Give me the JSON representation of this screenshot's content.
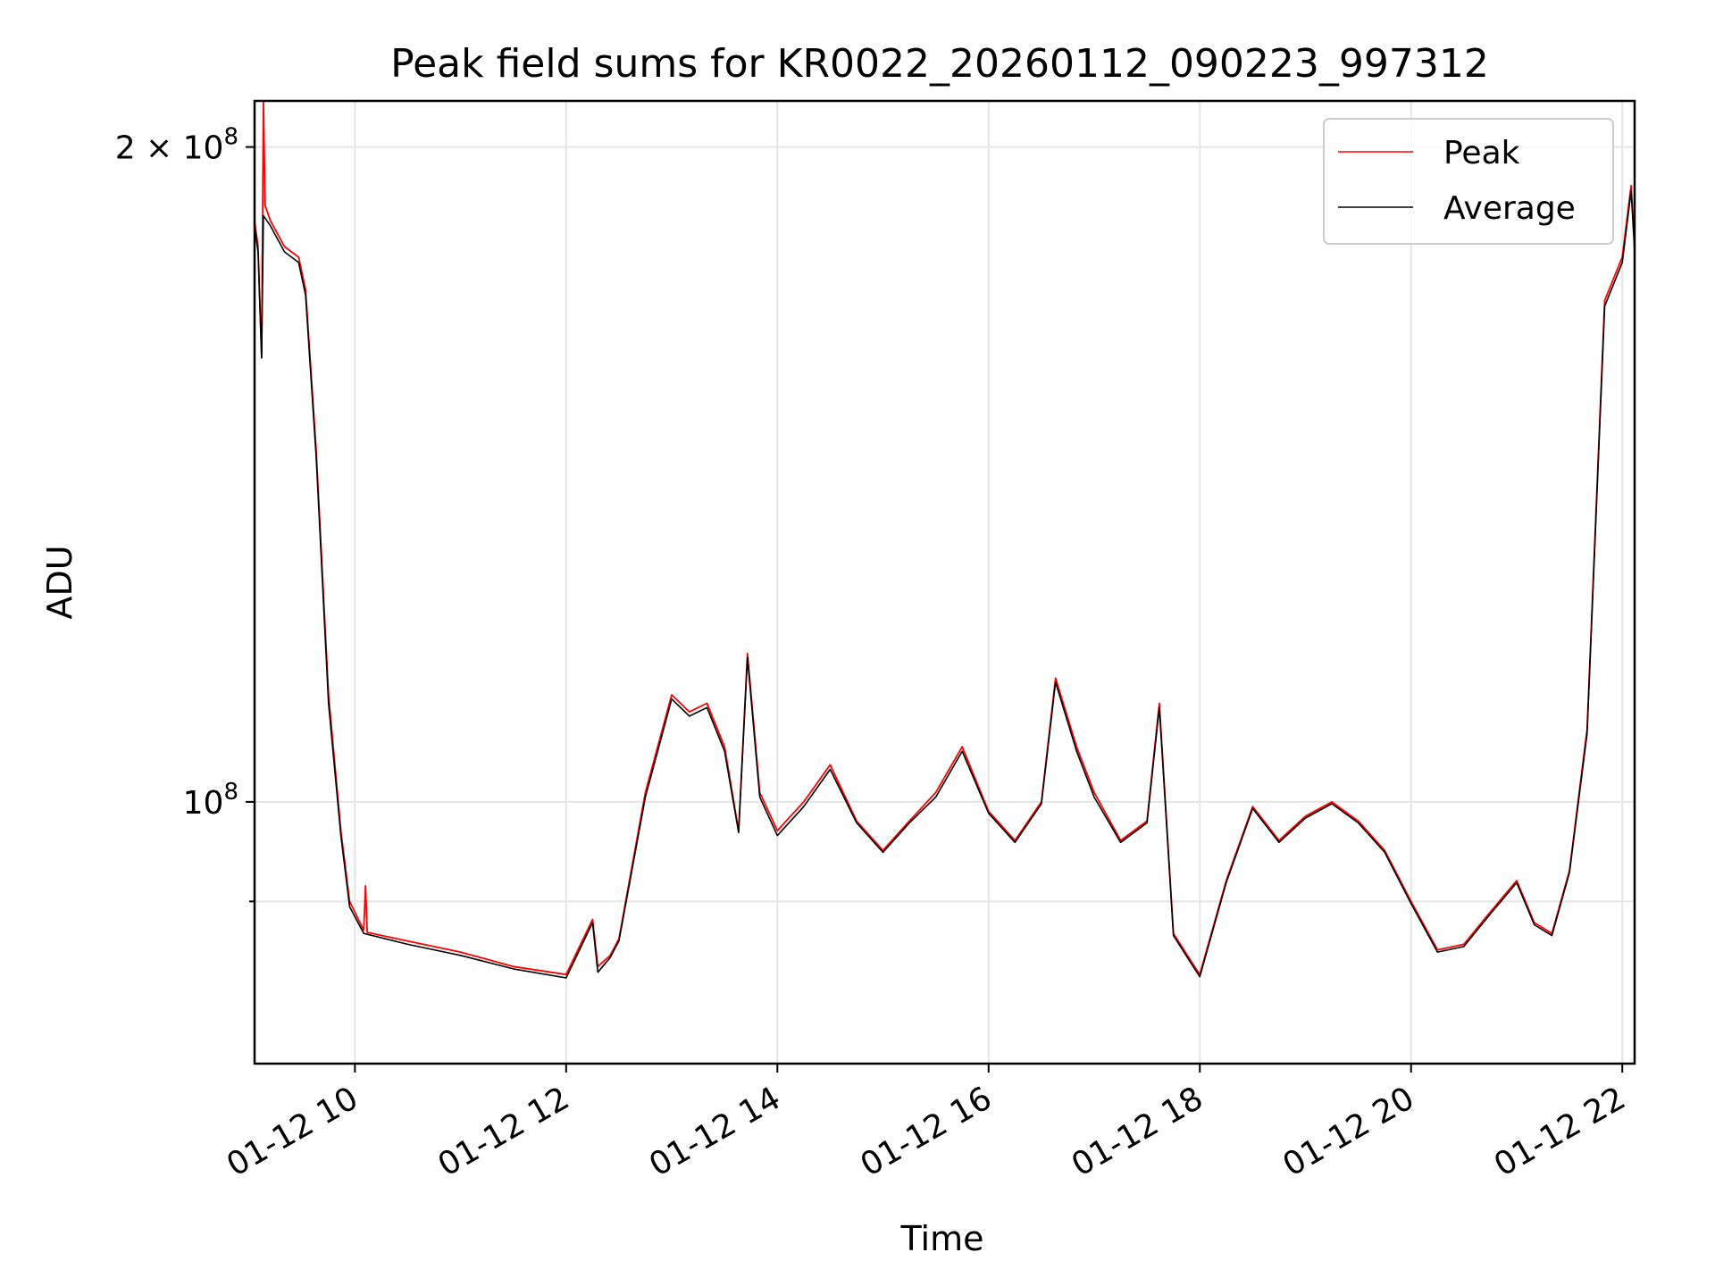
{
  "chart_data": {
    "type": "line",
    "title": "Peak field sums for KR0022_20260112_090223_997312",
    "xlabel": "Time",
    "ylabel": "ADU",
    "y_scale": "log",
    "ylim": [
      75800000,
      210000000
    ],
    "xlim": [
      "2026-01-12 09:03",
      "2026-01-12 22:07"
    ],
    "grid": true,
    "legend_position": "top-right",
    "x_ticks": [
      {
        "t": "2026-01-12 10:00",
        "label": "01-12 10"
      },
      {
        "t": "2026-01-12 12:00",
        "label": "01-12 12"
      },
      {
        "t": "2026-01-12 14:00",
        "label": "01-12 14"
      },
      {
        "t": "2026-01-12 16:00",
        "label": "01-12 16"
      },
      {
        "t": "2026-01-12 18:00",
        "label": "01-12 18"
      },
      {
        "t": "2026-01-12 20:00",
        "label": "01-12 20"
      },
      {
        "t": "2026-01-12 22:00",
        "label": "01-12 22"
      }
    ],
    "y_ticks": [
      {
        "value": 200000000,
        "base": "2 × 10",
        "exp": "8",
        "major": true
      },
      {
        "value": 100000000,
        "base": "10",
        "exp": "8",
        "major": true
      },
      {
        "value": 90000000,
        "base": "",
        "exp": "",
        "major": false
      }
    ],
    "series": [
      {
        "name": "Peak",
        "color": "#ff0000",
        "points": [
          [
            "2026-01-12 09:03",
            185000000
          ],
          [
            "2026-01-12 09:05",
            180000000
          ],
          [
            "2026-01-12 09:07",
            160000000
          ],
          [
            "2026-01-12 09:08",
            210000000
          ],
          [
            "2026-01-12 09:09",
            188000000
          ],
          [
            "2026-01-12 09:12",
            185000000
          ],
          [
            "2026-01-12 09:20",
            180000000
          ],
          [
            "2026-01-12 09:28",
            178000000
          ],
          [
            "2026-01-12 09:32",
            172000000
          ],
          [
            "2026-01-12 09:38",
            145000000
          ],
          [
            "2026-01-12 09:45",
            112000000
          ],
          [
            "2026-01-12 09:52",
            97000000
          ],
          [
            "2026-01-12 09:57",
            90000000
          ],
          [
            "2026-01-12 10:05",
            87300000
          ],
          [
            "2026-01-12 10:06",
            91500000
          ],
          [
            "2026-01-12 10:07",
            87100000
          ],
          [
            "2026-01-12 10:30",
            86300000
          ],
          [
            "2026-01-12 11:00",
            85300000
          ],
          [
            "2026-01-12 11:30",
            84000000
          ],
          [
            "2026-01-12 12:00",
            83300000
          ],
          [
            "2026-01-12 12:15",
            88300000
          ],
          [
            "2026-01-12 12:18",
            84000000
          ],
          [
            "2026-01-12 12:25",
            85000000
          ],
          [
            "2026-01-12 12:30",
            86500000
          ],
          [
            "2026-01-12 12:45",
            101000000
          ],
          [
            "2026-01-12 13:00",
            112000000
          ],
          [
            "2026-01-12 13:10",
            110000000
          ],
          [
            "2026-01-12 13:20",
            111000000
          ],
          [
            "2026-01-12 13:30",
            106000000
          ],
          [
            "2026-01-12 13:38",
            97000000
          ],
          [
            "2026-01-12 13:43",
            117000000
          ],
          [
            "2026-01-12 13:50",
            101000000
          ],
          [
            "2026-01-12 14:00",
            97000000
          ],
          [
            "2026-01-12 14:15",
            100000000
          ],
          [
            "2026-01-12 14:30",
            104000000
          ],
          [
            "2026-01-12 14:45",
            98000000
          ],
          [
            "2026-01-12 15:00",
            95000000
          ],
          [
            "2026-01-12 15:15",
            98000000
          ],
          [
            "2026-01-12 15:30",
            101000000
          ],
          [
            "2026-01-12 15:45",
            106000000
          ],
          [
            "2026-01-12 16:00",
            99000000
          ],
          [
            "2026-01-12 16:15",
            96000000
          ],
          [
            "2026-01-12 16:30",
            100000000
          ],
          [
            "2026-01-12 16:38",
            114000000
          ],
          [
            "2026-01-12 16:50",
            106000000
          ],
          [
            "2026-01-12 17:00",
            101000000
          ],
          [
            "2026-01-12 17:15",
            96000000
          ],
          [
            "2026-01-12 17:30",
            98000000
          ],
          [
            "2026-01-12 17:37",
            111000000
          ],
          [
            "2026-01-12 17:45",
            87000000
          ],
          [
            "2026-01-12 17:55",
            84500000
          ],
          [
            "2026-01-12 18:00",
            83300000
          ],
          [
            "2026-01-12 18:15",
            92000000
          ],
          [
            "2026-01-12 18:30",
            99500000
          ],
          [
            "2026-01-12 18:45",
            96000000
          ],
          [
            "2026-01-12 19:00",
            98500000
          ],
          [
            "2026-01-12 19:15",
            100000000
          ],
          [
            "2026-01-12 19:30",
            98000000
          ],
          [
            "2026-01-12 19:45",
            95000000
          ],
          [
            "2026-01-12 20:00",
            90000000
          ],
          [
            "2026-01-12 20:15",
            85500000
          ],
          [
            "2026-01-12 20:30",
            86000000
          ],
          [
            "2026-01-12 20:45",
            89000000
          ],
          [
            "2026-01-12 21:00",
            92000000
          ],
          [
            "2026-01-12 21:10",
            88000000
          ],
          [
            "2026-01-12 21:20",
            87000000
          ],
          [
            "2026-01-12 21:30",
            93000000
          ],
          [
            "2026-01-12 21:40",
            108000000
          ],
          [
            "2026-01-12 21:50",
            170000000
          ],
          [
            "2026-01-12 22:00",
            178000000
          ],
          [
            "2026-01-12 22:05",
            192000000
          ],
          [
            "2026-01-12 22:07",
            180000000
          ]
        ]
      },
      {
        "name": "Average",
        "color": "#000000",
        "points": [
          [
            "2026-01-12 09:03",
            184000000
          ],
          [
            "2026-01-12 09:05",
            179000000
          ],
          [
            "2026-01-12 09:07",
            160000000
          ],
          [
            "2026-01-12 09:08",
            186000000
          ],
          [
            "2026-01-12 09:12",
            184000000
          ],
          [
            "2026-01-12 09:20",
            179000000
          ],
          [
            "2026-01-12 09:28",
            177000000
          ],
          [
            "2026-01-12 09:32",
            171000000
          ],
          [
            "2026-01-12 09:38",
            144000000
          ],
          [
            "2026-01-12 09:45",
            111000000
          ],
          [
            "2026-01-12 09:52",
            96500000
          ],
          [
            "2026-01-12 09:57",
            89500000
          ],
          [
            "2026-01-12 10:05",
            87000000
          ],
          [
            "2026-01-12 10:30",
            86000000
          ],
          [
            "2026-01-12 11:00",
            85000000
          ],
          [
            "2026-01-12 11:30",
            83800000
          ],
          [
            "2026-01-12 12:00",
            83000000
          ],
          [
            "2026-01-12 12:15",
            88000000
          ],
          [
            "2026-01-12 12:18",
            83500000
          ],
          [
            "2026-01-12 12:25",
            84800000
          ],
          [
            "2026-01-12 12:30",
            86300000
          ],
          [
            "2026-01-12 12:45",
            100500000
          ],
          [
            "2026-01-12 13:00",
            111500000
          ],
          [
            "2026-01-12 13:10",
            109500000
          ],
          [
            "2026-01-12 13:20",
            110500000
          ],
          [
            "2026-01-12 13:30",
            105500000
          ],
          [
            "2026-01-12 13:38",
            96800000
          ],
          [
            "2026-01-12 13:43",
            116500000
          ],
          [
            "2026-01-12 13:50",
            100500000
          ],
          [
            "2026-01-12 14:00",
            96500000
          ],
          [
            "2026-01-12 14:15",
            99500000
          ],
          [
            "2026-01-12 14:30",
            103500000
          ],
          [
            "2026-01-12 14:45",
            97800000
          ],
          [
            "2026-01-12 15:00",
            94800000
          ],
          [
            "2026-01-12 15:15",
            97800000
          ],
          [
            "2026-01-12 15:30",
            100500000
          ],
          [
            "2026-01-12 15:45",
            105500000
          ],
          [
            "2026-01-12 16:00",
            98800000
          ],
          [
            "2026-01-12 16:15",
            95800000
          ],
          [
            "2026-01-12 16:30",
            99800000
          ],
          [
            "2026-01-12 16:38",
            113500000
          ],
          [
            "2026-01-12 16:50",
            105500000
          ],
          [
            "2026-01-12 17:00",
            100500000
          ],
          [
            "2026-01-12 17:15",
            95800000
          ],
          [
            "2026-01-12 17:30",
            97800000
          ],
          [
            "2026-01-12 17:37",
            110500000
          ],
          [
            "2026-01-12 17:45",
            86800000
          ],
          [
            "2026-01-12 17:55",
            84300000
          ],
          [
            "2026-01-12 18:00",
            83100000
          ],
          [
            "2026-01-12 18:15",
            91800000
          ],
          [
            "2026-01-12 18:30",
            99300000
          ],
          [
            "2026-01-12 18:45",
            95800000
          ],
          [
            "2026-01-12 19:00",
            98300000
          ],
          [
            "2026-01-12 19:15",
            99800000
          ],
          [
            "2026-01-12 19:30",
            97800000
          ],
          [
            "2026-01-12 19:45",
            94800000
          ],
          [
            "2026-01-12 20:00",
            89800000
          ],
          [
            "2026-01-12 20:15",
            85300000
          ],
          [
            "2026-01-12 20:30",
            85800000
          ],
          [
            "2026-01-12 20:45",
            88800000
          ],
          [
            "2026-01-12 21:00",
            91800000
          ],
          [
            "2026-01-12 21:10",
            87800000
          ],
          [
            "2026-01-12 21:20",
            86800000
          ],
          [
            "2026-01-12 21:30",
            92800000
          ],
          [
            "2026-01-12 21:40",
            107500000
          ],
          [
            "2026-01-12 21:50",
            169000000
          ],
          [
            "2026-01-12 22:00",
            177000000
          ],
          [
            "2026-01-12 22:05",
            191000000
          ],
          [
            "2026-01-12 22:07",
            179000000
          ]
        ]
      }
    ]
  }
}
